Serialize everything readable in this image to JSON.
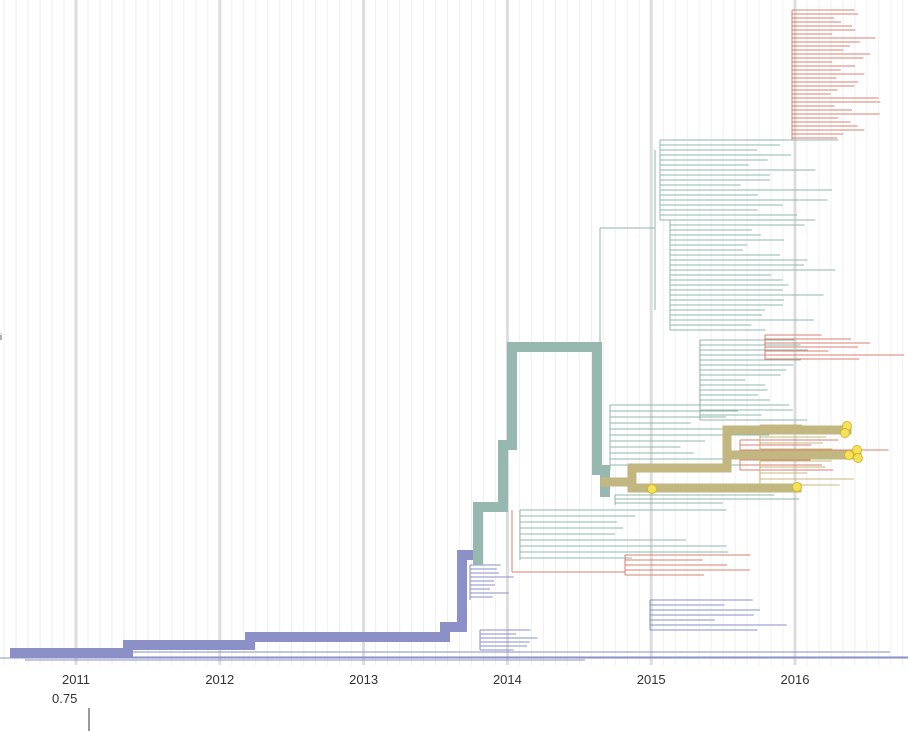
{
  "axis": {
    "ticks": [
      "2011",
      "2012",
      "2013",
      "2014",
      "2015",
      "2016"
    ]
  },
  "scale_label": "0.75"
}
